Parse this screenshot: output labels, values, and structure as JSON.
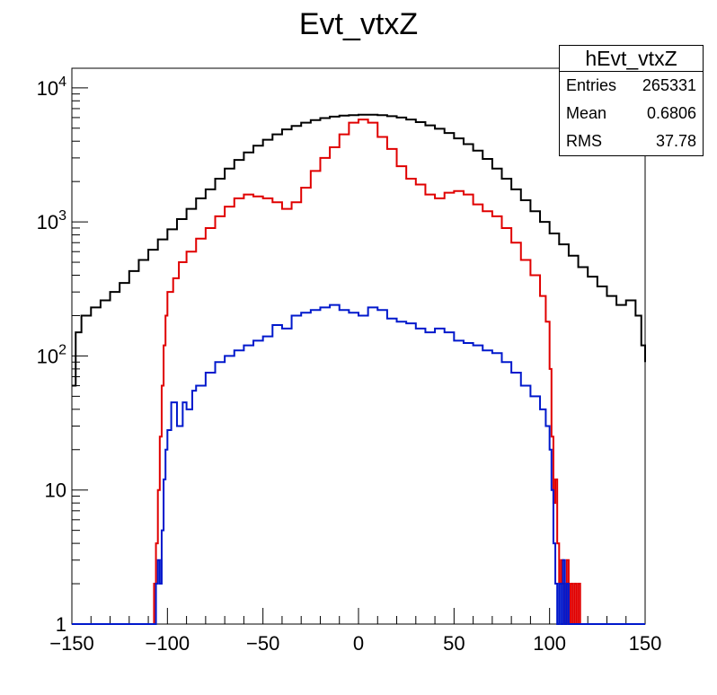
{
  "chart_data": {
    "type": "line",
    "title": "Evt_vtxZ",
    "xlabel": "",
    "ylabel": "",
    "xlim": [
      -150,
      150
    ],
    "ylim": [
      1,
      14000
    ],
    "yscale": "log",
    "xticks": [
      "−150",
      "−100",
      "−50",
      "0",
      "50",
      "100",
      "150"
    ],
    "xtick_values": [
      -150,
      -100,
      -50,
      0,
      50,
      100,
      150
    ],
    "yticks": [
      "1",
      "10",
      "10^2",
      "10^3",
      "10^4"
    ],
    "ytick_values": [
      1,
      10,
      100,
      1000,
      10000
    ],
    "grid": false,
    "stats": {
      "name": "hEvt_vtxZ",
      "rows": [
        {
          "label": "Entries",
          "value": "265331"
        },
        {
          "label": "Mean",
          "value": "0.6806"
        },
        {
          "label": "RMS",
          "value": "37.78"
        }
      ]
    },
    "series": [
      {
        "color": "#000000",
        "x": [
          -150,
          -148,
          -145,
          -140,
          -135,
          -130,
          -125,
          -120,
          -115,
          -110,
          -105,
          -100,
          -95,
          -90,
          -85,
          -80,
          -75,
          -70,
          -65,
          -60,
          -55,
          -50,
          -45,
          -40,
          -35,
          -30,
          -25,
          -20,
          -15,
          -10,
          -5,
          0,
          5,
          10,
          15,
          20,
          25,
          30,
          35,
          40,
          45,
          50,
          55,
          60,
          65,
          70,
          75,
          80,
          85,
          90,
          95,
          100,
          105,
          110,
          115,
          120,
          125,
          130,
          135,
          140,
          145,
          148,
          150
        ],
        "y": [
          60,
          150,
          200,
          230,
          260,
          300,
          350,
          430,
          520,
          620,
          740,
          880,
          1050,
          1250,
          1500,
          1750,
          2100,
          2500,
          2900,
          3300,
          3700,
          4100,
          4500,
          4900,
          5200,
          5500,
          5750,
          5950,
          6100,
          6200,
          6250,
          6300,
          6300,
          6250,
          6150,
          6000,
          5800,
          5550,
          5250,
          4950,
          4600,
          4200,
          3800,
          3400,
          2950,
          2500,
          2100,
          1750,
          1450,
          1200,
          1000,
          820,
          680,
          560,
          460,
          390,
          330,
          280,
          240,
          260,
          200,
          120,
          90
        ]
      },
      {
        "color": "#e00000",
        "x": [
          -150,
          -108,
          -107,
          -106,
          -105,
          -104,
          -103,
          -102,
          -101,
          -100,
          -97,
          -94,
          -90,
          -85,
          -80,
          -75,
          -70,
          -65,
          -60,
          -55,
          -50,
          -45,
          -40,
          -35,
          -30,
          -25,
          -20,
          -15,
          -10,
          -5,
          0,
          5,
          10,
          15,
          20,
          25,
          30,
          35,
          40,
          45,
          50,
          55,
          60,
          65,
          70,
          75,
          80,
          85,
          90,
          95,
          98,
          100,
          101,
          102,
          103,
          104,
          105,
          106,
          107,
          108,
          109,
          110,
          111,
          112,
          113,
          114,
          115,
          116,
          150
        ],
        "y": [
          1,
          1,
          2,
          4,
          10,
          25,
          60,
          120,
          200,
          300,
          380,
          500,
          600,
          750,
          900,
          1100,
          1300,
          1500,
          1600,
          1550,
          1500,
          1400,
          1250,
          1400,
          1800,
          2400,
          3000,
          3600,
          4500,
          5500,
          5800,
          5500,
          4300,
          3500,
          2600,
          2100,
          1900,
          1600,
          1500,
          1650,
          1700,
          1600,
          1350,
          1200,
          1100,
          900,
          700,
          520,
          400,
          280,
          180,
          80,
          25,
          8,
          12,
          4,
          2,
          3,
          2,
          1,
          3,
          1,
          2,
          1,
          2,
          1,
          2,
          1,
          1
        ]
      },
      {
        "color": "#0018cc",
        "x": [
          -150,
          -107,
          -106,
          -105,
          -104,
          -103,
          -102,
          -101,
          -100,
          -98,
          -95,
          -92,
          -90,
          -87,
          -85,
          -80,
          -75,
          -70,
          -65,
          -60,
          -55,
          -50,
          -45,
          -40,
          -35,
          -30,
          -25,
          -20,
          -15,
          -10,
          -5,
          0,
          5,
          10,
          15,
          20,
          25,
          30,
          35,
          40,
          45,
          50,
          55,
          60,
          65,
          70,
          75,
          80,
          85,
          90,
          95,
          98,
          100,
          101,
          102,
          103,
          104,
          105,
          106,
          107,
          108,
          109,
          110,
          150
        ],
        "y": [
          1,
          1,
          2,
          3,
          2,
          5,
          12,
          20,
          28,
          45,
          30,
          45,
          40,
          55,
          60,
          75,
          90,
          100,
          110,
          120,
          130,
          140,
          170,
          160,
          200,
          210,
          220,
          230,
          240,
          220,
          210,
          200,
          230,
          220,
          190,
          180,
          175,
          160,
          150,
          160,
          150,
          130,
          125,
          120,
          110,
          105,
          90,
          75,
          60,
          50,
          40,
          30,
          20,
          10,
          4,
          2,
          1,
          2,
          1,
          3,
          1,
          2,
          1,
          1
        ]
      }
    ]
  }
}
